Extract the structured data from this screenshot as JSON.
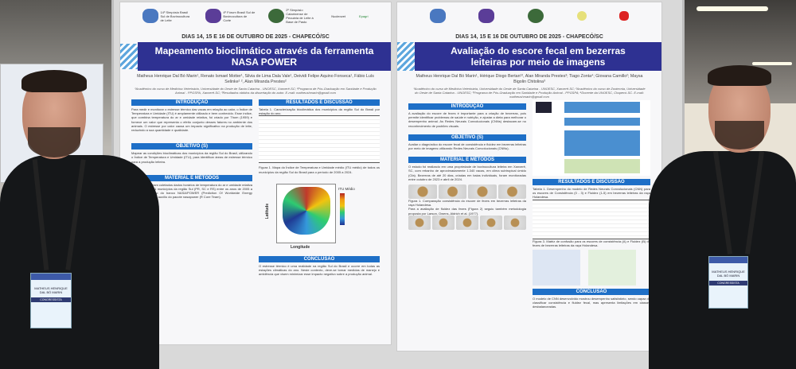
{
  "poster_left": {
    "event_logos": [
      "14º Simpósio Brasil Sul de Bovinocultura de Leite",
      "4º Fórum Brasil Sul de Bovinocultura de Corte",
      "2º Simpósio Catarinense de Pecuária de Leite à Base de Pasto",
      "Nucleovet",
      "Epagri"
    ],
    "date": "DIAS 14, 15 E 16 DE OUTUBRO DE 2025 - CHAPECÓ/SC",
    "title": "Mapeamento bioclimático através da ferramenta NASA POWER",
    "authors": "Matheus Henrique Dal Bó Marin¹, Renato Ismael Motter¹, Silvia de Lima Dala Vale¹, Deividi Felipe Aquino Fonseca¹, Fábio Luís Selinke¹ ², Alan Miranda Prestes²",
    "affiliation": "¹Acadêmico do curso de Medicina Veterinária, Universidade do Oeste de Santa Catarina - UNOESC, Xanxerê-SC; ²Programa de Pós-Graduação em Sanidade e Produção Animal - PPGSPA, Xanxerê-SC; ³Resultados obtidos da dissertação do autor. E-mail: matheushmarin@gmail.com",
    "sections": {
      "intro": "INTRODUÇÃO",
      "intro_text": "Para medir e monitorar o estresse térmico das vacas em relação ao calor, o Índice de Temperatura e Umidade (ITU) é amplamente utilizado e bem conhecido. Esse índice, que combina temperatura do ar e umidade relativa, foi criado por Thom (1959) e fornece um valor que representa o efeito conjunto desses fatores no ambiente dos animais. O estresse por calor causa um impacto significativo na produção de leite, reduzindo a sua quantidade e qualidade.",
      "objective": "OBJETIVO (S)",
      "objective_text": "Mapear as condições bioclimáticas dos municípios da região Sul do Brasil, utilizando o Índice de Temperatura e Umidade (ITU), para identificar áreas de estresse térmico para a produção leiteira.",
      "methods": "MATERIAL E MÉTODOS",
      "methods_text": "Inicialmente, foram coletados dados horários de temperatura do ar e umidade relativa (UR%) dos 1.191 municípios da região Sul (PR, SC e RS) entre os anos de 2005 a 2024, obtidos no do banco NASA/POWER (Prediction Of Worldwide Energy Resources) com o auxílio do pacote nasapower (R Core Team).",
      "results": "RESULTADOS E DISCUSSÃO",
      "table_caption": "Tabela 1. Caracterização bioclimática dos municípios da região Sul do Brasil por estação do ano.",
      "figure_caption": "Figura 1. Mapa do Índice de Temperatura e Umidade médio (ITU médio) de todos os municípios da região Sul do Brasil para o período de 2005 a 2024.",
      "legend_title": "ITU Médio",
      "xlabel": "Longitude",
      "ylabel": "Latitude",
      "conclusion": "CONCLUSÃO",
      "conclusion_text": "O estresse térmico é uma realidade na região Sul do Brasil e ocorre em todas as estações climáticas do ano. Neste contexto, deve-se tomar medidas de manejo e ambiência que visem minimizar esse impacto negativo sobre a produção animal."
    }
  },
  "poster_right": {
    "date": "DIAS 14, 15 E 16 DE OUTUBRO DE 2025 - CHAPECÓ/SC",
    "title": "Avaliação do escore fecal em bezerras leiteiras por meio de imagens",
    "authors": "Matheus Henrique Dal Bó Marin¹, Hérique Diogo Bertan¹², Alan Miranda Prestes³; Tiago Zonta⁴; Giovana Camillo²; Maysa Bigolin Chitolina³",
    "affiliation": "¹Acadêmico do curso de Medicina Veterinária, Universidade do Oeste de Santa Catarina - UNOESC, Xanxerê-SC; ²Acadêmico do curso de Zootecnia, Universidade do Oeste de Santa Catarina - UNOESC; ³Programa de Pós-Graduação em Sanidade e Produção Animal - PPGSPA; ⁴Docente da UNOESC, Chapecó-SC. E-mail: matheushmarin@gmail.com",
    "sections": {
      "intro": "INTRODUÇÃO",
      "intro_text": "A avaliação do escore de fezes é importante para a criação de bezerras, pois permite identificar problemas de saúde e nutrição, e ajustar a dieta para melhorar o desempenho animal. As Redes Neurais Convolucionais (CNNs) destacam-se no reconhecimento de padrões visuais.",
      "objective": "OBJETIVO (S)",
      "objective_text": "Avaliar o diagnóstico do escore fecal de consistência e fluidez em bezerras leiteiras por meio de imagens utilizando Redes Neurais Convolucionais (CNNs).",
      "methods": "MATERIAL E MÉTODOS",
      "methods_text": "O estudo foi realizado em uma propriedade de bovinocultura leiteira em Xanxerê, SC, com rebanho de aproximadamente 1.340 vacas, em clima subtropical úmido (Cfa). Bezerras de até 20 dias, criadas em baias individuais, foram monitoradas entre outubro de 2023 e abril de 2024.",
      "fig1_caption": "Figura 1. Comparação consistência do escore de fezes em bezerras leiteiras da raça Holandesa.",
      "fig2_text": "Para a avaliação de fluidez das fezes (Figura 2) seguiu também metodologia proposta por Larson, Owens, Aldrich et al. (1977).",
      "results": "RESULTADOS E DISCUSSÃO",
      "table_caption": "Tabela 1. Desempenho do modelo de Redes Neurais Convolucionais (CNN) para os escores de Consistência (0 - 3) e Fluidez (1-5) em bezerras leiteiras da raça Holandesa.",
      "fig3_caption": "Figura 3. Matriz de confusão para os escores de consistência (A) e Fluidez (B) de fezes de bezerras leiteiras da raça Holandesa.",
      "conclusion": "CONCLUSÃO",
      "conclusion_text": "O modelo de CNN desenvolvido mostrou desempenho satisfatório, sendo capaz de classificar consistência e fluidez fecal, mas apresenta limitações em classes desbalanceadas."
    }
  },
  "badges": {
    "left": "MATHEUS HENRIQUE DAL BÓ MARIN",
    "right": "MATHEUS HENRIQUE DAL BÓ MARIN",
    "role": "CONGRESSISTA"
  },
  "colors": {
    "title_band": "#2e3192",
    "section": "#1e6fc7"
  }
}
